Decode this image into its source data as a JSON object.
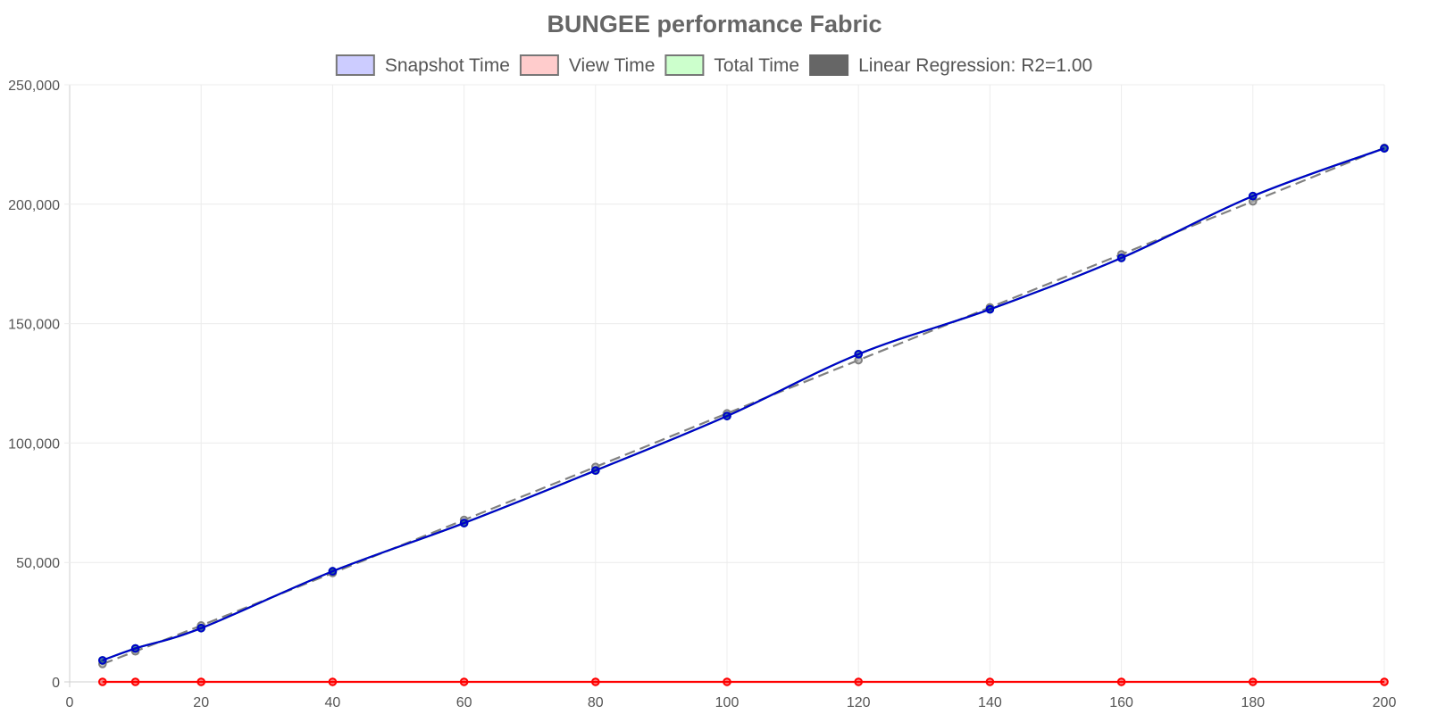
{
  "chart_data": {
    "type": "line",
    "title": "BUNGEE performance Fabric",
    "xlabel": "",
    "ylabel": "",
    "xlim": [
      0,
      200
    ],
    "ylim": [
      0,
      250000
    ],
    "x_ticks": [
      "0",
      "20",
      "40",
      "60",
      "80",
      "100",
      "120",
      "140",
      "160",
      "180",
      "200"
    ],
    "y_ticks": [
      "0",
      "50,000",
      "100,000",
      "150,000",
      "200,000",
      "250,000"
    ],
    "grid": true,
    "legend_position": "top",
    "legend": [
      {
        "label": "Snapshot Time",
        "fill": "#ccccff",
        "stroke": "#777777"
      },
      {
        "label": "View Time",
        "fill": "#ffcccc",
        "stroke": "#777777"
      },
      {
        "label": "Total Time",
        "fill": "#ccffcc",
        "stroke": "#777777"
      },
      {
        "label": "Linear Regression: R2=1.00",
        "fill": "#666666",
        "stroke": "#666666"
      }
    ],
    "x": [
      5,
      10,
      20,
      40,
      60,
      80,
      100,
      120,
      140,
      160,
      180,
      200
    ],
    "series": [
      {
        "name": "Linear Regression: R2=1.00",
        "color": "#808080",
        "dashed": true,
        "values": [
          7500,
          12800,
          23600,
          45600,
          67800,
          90000,
          112400,
          134700,
          156800,
          179000,
          201200,
          223600
        ]
      },
      {
        "name": "Total Time",
        "color": "#00cc00",
        "dashed": false,
        "values": [
          9000,
          14000,
          22500,
          46300,
          66500,
          88500,
          111300,
          137200,
          156000,
          177500,
          203400,
          223400
        ]
      },
      {
        "name": "Snapshot Time",
        "color": "#0000cc",
        "dashed": false,
        "values": [
          9000,
          14000,
          22500,
          46300,
          66500,
          88500,
          111300,
          137200,
          156000,
          177500,
          203400,
          223400
        ]
      },
      {
        "name": "View Time",
        "color": "#ff0000",
        "dashed": false,
        "values": [
          0,
          0,
          0,
          0,
          0,
          0,
          0,
          0,
          0,
          0,
          0,
          0
        ]
      }
    ]
  }
}
